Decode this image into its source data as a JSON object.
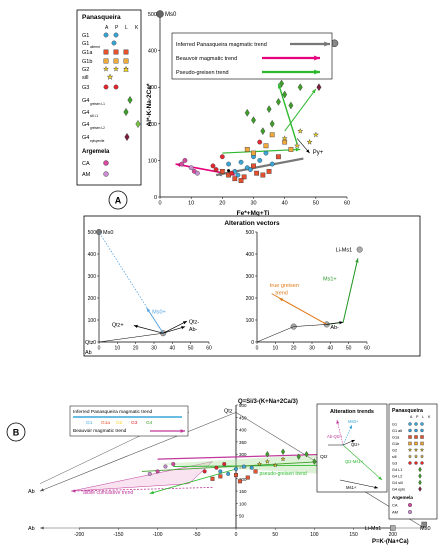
{
  "figure": {
    "panel_a_label": "A",
    "panel_b_label": "B",
    "legend_a": {
      "title": "Panasqueira",
      "col_headers": [
        "A",
        "P",
        "L",
        "K"
      ],
      "rows": [
        {
          "label": "G1",
          "sub": ""
        },
        {
          "label": "G1",
          "sub": "altered"
        },
        {
          "label": "G1a",
          "sub": ""
        },
        {
          "label": "G1b",
          "sub": ""
        },
        {
          "label": "G2",
          "sub": ""
        },
        {
          "label": "sill",
          "sub": ""
        },
        {
          "label": "G3",
          "sub": ""
        },
        {
          "label": "G4",
          "sub": "greisen L1"
        },
        {
          "label": "G4",
          "sub": "sill L1"
        },
        {
          "label": "G4",
          "sub": "greisen L2"
        },
        {
          "label": "G4",
          "sub": "episyenite"
        }
      ],
      "section2_title": "Argemela",
      "rows2": [
        {
          "label": "CA"
        },
        {
          "label": "AM"
        }
      ]
    },
    "legend_b": {
      "title": "Panasqueira",
      "col_headers": [
        "A",
        "P",
        "L",
        "K"
      ],
      "rows": [
        "G1",
        "G1 alt",
        "G1a",
        "G1b",
        "G2",
        "sill",
        "G3",
        "G4 L1",
        "G4 L2",
        "G4 sill",
        "G4 epis"
      ],
      "section2_title": "Argemela",
      "rows2": [
        "CA",
        "AM"
      ]
    },
    "alteration_trends_title": "Alteration trends",
    "alteration_vectors_title": "Alteration vectors"
  },
  "chart_data": [
    {
      "type": "scatter",
      "panel": "A",
      "xlabel": "Fe*+Mg+Ti",
      "ylabel": "Al*-K-Na-2Ca*",
      "xlim": [
        0,
        60
      ],
      "ylim": [
        0,
        500
      ],
      "xticks": [
        0,
        10,
        20,
        30,
        40,
        50,
        60
      ],
      "yticks": [
        0,
        100,
        200,
        300,
        400,
        500
      ],
      "reference_points": [
        {
          "name": "Ms0",
          "x": 0,
          "y": 500
        },
        {
          "name": "Li-Ms1",
          "x": 56,
          "y": 420
        }
      ],
      "annotations": [
        "Py+"
      ],
      "legend": [
        "Inferred Panasqueira magmatic trend",
        "Beauvoir magmatic trend",
        "Pseudo-greisen trend"
      ],
      "series": [
        {
          "name": "G1",
          "points": [
            [
              26,
              95
            ],
            [
              30,
              110
            ],
            [
              22,
              90
            ],
            [
              34,
              120
            ],
            [
              28,
              80
            ],
            [
              32,
              100
            ],
            [
              25,
              60
            ],
            [
              36,
              90
            ],
            [
              29,
              75
            ],
            [
              24,
              70
            ]
          ]
        },
        {
          "name": "G1a",
          "points": [
            [
              20,
              70
            ],
            [
              22,
              60
            ],
            [
              27,
              55
            ],
            [
              31,
              65
            ],
            [
              24,
              50
            ],
            [
              30,
              85
            ],
            [
              35,
              70
            ],
            [
              38,
              110
            ],
            [
              33,
              60
            ],
            [
              26,
              45
            ]
          ]
        },
        {
          "name": "G1b",
          "points": [
            [
              28,
              130
            ],
            [
              34,
              140
            ],
            [
              40,
              150
            ],
            [
              36,
              170
            ],
            [
              30,
              120
            ],
            [
              42,
              130
            ]
          ]
        },
        {
          "name": "G2",
          "points": [
            [
              40,
              160
            ],
            [
              45,
              180
            ],
            [
              48,
              150
            ],
            [
              50,
              170
            ],
            [
              44,
              140
            ]
          ]
        },
        {
          "name": "G3",
          "points": [
            [
              17,
              85
            ],
            [
              18,
              75
            ],
            [
              20,
              110
            ],
            [
              23,
              65
            ],
            [
              32,
              150
            ]
          ]
        },
        {
          "name": "G4",
          "points": [
            [
              30,
              210
            ],
            [
              35,
              240
            ],
            [
              38,
              260
            ],
            [
              40,
              280
            ],
            [
              45,
              300
            ],
            [
              36,
              200
            ],
            [
              33,
              180
            ],
            [
              42,
              250
            ],
            [
              28,
              230
            ],
            [
              39,
              310
            ]
          ]
        },
        {
          "name": "CA",
          "points": [
            [
              8,
              100
            ],
            [
              7,
              90
            ],
            [
              11,
              70
            ]
          ]
        },
        {
          "name": "AM",
          "points": [
            [
              10,
              80
            ],
            [
              12,
              65
            ]
          ]
        }
      ]
    },
    {
      "type": "line",
      "panel": "alteration-vectors-left",
      "xlim": [
        0,
        60
      ],
      "ylim": [
        0,
        500
      ],
      "xticks": [
        0,
        10,
        20,
        30,
        40,
        50,
        60
      ],
      "yticks": [
        0,
        100,
        200,
        300,
        400,
        500
      ],
      "reference_points": [
        {
          "name": "Ms0",
          "x": 0,
          "y": 500
        },
        {
          "name": "Qtz",
          "x": 0,
          "y": 0
        }
      ],
      "vector_labels": [
        "Ms0+",
        "Qtz+",
        "Qtz-",
        "Ab-"
      ],
      "origin_label": "Ab"
    },
    {
      "type": "line",
      "panel": "alteration-vectors-right",
      "xlim": [
        0,
        60
      ],
      "ylim": [
        0,
        500
      ],
      "xticks": [
        0,
        10,
        20,
        30,
        40,
        50,
        60
      ],
      "yticks": [
        0,
        100,
        200,
        300,
        400,
        500
      ],
      "reference_points": [
        {
          "name": "Li-Ms1",
          "x": 56,
          "y": 420
        }
      ],
      "vector_labels": [
        "Ms1+",
        "true greisen trend",
        "Ab-",
        "Qtz+"
      ]
    },
    {
      "type": "scatter",
      "panel": "B",
      "ylabel": "Q=Si/3-(K+Na+2Ca/3)",
      "xlabel": "P=K-(Na+Ca)",
      "xlim": [
        -250,
        250
      ],
      "ylim": [
        0,
        500
      ],
      "xticks": [
        -200,
        -150,
        -100,
        -50,
        0,
        50,
        100,
        150,
        200
      ],
      "yticks": [
        0,
        50,
        100,
        150,
        200,
        250,
        300,
        350,
        400,
        450,
        500
      ],
      "reference_points": [
        {
          "name": "Qtz",
          "x": 0,
          "y": 470
        },
        {
          "name": "Ab",
          "x": -250,
          "y": 0
        },
        {
          "name": "Li-Ms1",
          "x": 200,
          "y": 0
        },
        {
          "name": "Ms0",
          "x": 240,
          "y": 0
        }
      ],
      "annotations": [
        "albite cumulative trend",
        "pseudo-greisen trend"
      ],
      "legend": [
        "Inferred Panasqueira magmatic trend",
        "Beauvoir magmatic trend"
      ],
      "legend_groups": [
        "G1",
        "G1a",
        "G2",
        "G3",
        "G4"
      ],
      "trend_labels": [
        "Ab-Qtz+",
        "Ms0+",
        "Qtz+",
        "Qtz-Ms1+",
        "Ms1+"
      ],
      "series": [
        {
          "name": "G1",
          "points": [
            [
              -20,
              230
            ],
            [
              0,
              240
            ],
            [
              10,
              250
            ],
            [
              -10,
              220
            ],
            [
              20,
              245
            ]
          ]
        },
        {
          "name": "G1a",
          "points": [
            [
              -30,
              200
            ],
            [
              -20,
              210
            ],
            [
              0,
              215
            ],
            [
              5,
              190
            ],
            [
              15,
              205
            ],
            [
              25,
              230
            ]
          ]
        },
        {
          "name": "G2",
          "points": [
            [
              30,
              260
            ],
            [
              40,
              270
            ],
            [
              50,
              255
            ],
            [
              60,
              280
            ]
          ]
        },
        {
          "name": "G3",
          "points": [
            [
              -40,
              230
            ],
            [
              -25,
              245
            ],
            [
              -15,
              260
            ]
          ]
        },
        {
          "name": "G4",
          "points": [
            [
              40,
              300
            ],
            [
              60,
              310
            ],
            [
              80,
              290
            ],
            [
              90,
              300
            ],
            [
              100,
              270
            ]
          ]
        },
        {
          "name": "CA",
          "points": [
            [
              -80,
              260
            ],
            [
              -100,
              230
            ]
          ]
        },
        {
          "name": "AM",
          "points": [
            [
              -90,
              250
            ],
            [
              -110,
              220
            ]
          ]
        }
      ]
    }
  ]
}
